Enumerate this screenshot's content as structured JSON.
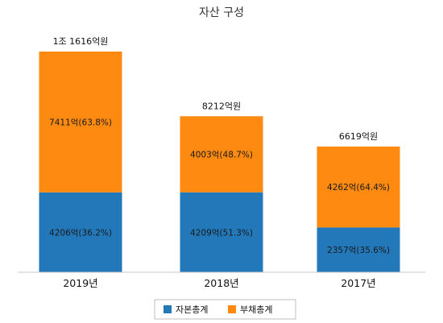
{
  "chart_data": {
    "type": "bar",
    "stacked": true,
    "title": "자산 구성",
    "categories": [
      "2019년",
      "2018년",
      "2017년"
    ],
    "series": [
      {
        "name": "자본총계",
        "color": "#2378b9",
        "values": [
          4206,
          4209,
          2357
        ],
        "labels": [
          "4206억(36.2%)",
          "4209억(51.3%)",
          "2357억(35.6%)"
        ]
      },
      {
        "name": "부채총계",
        "color": "#ff8a12",
        "values": [
          7411,
          4003,
          4262
        ],
        "labels": [
          "7411억(63.8%)",
          "4003억(48.7%)",
          "4262억(64.4%)"
        ]
      }
    ],
    "totals": [
      "1조 1616억원",
      "8212억원",
      "6619억원"
    ],
    "unit": "억원",
    "legend_position": "bottom",
    "grid": false
  }
}
